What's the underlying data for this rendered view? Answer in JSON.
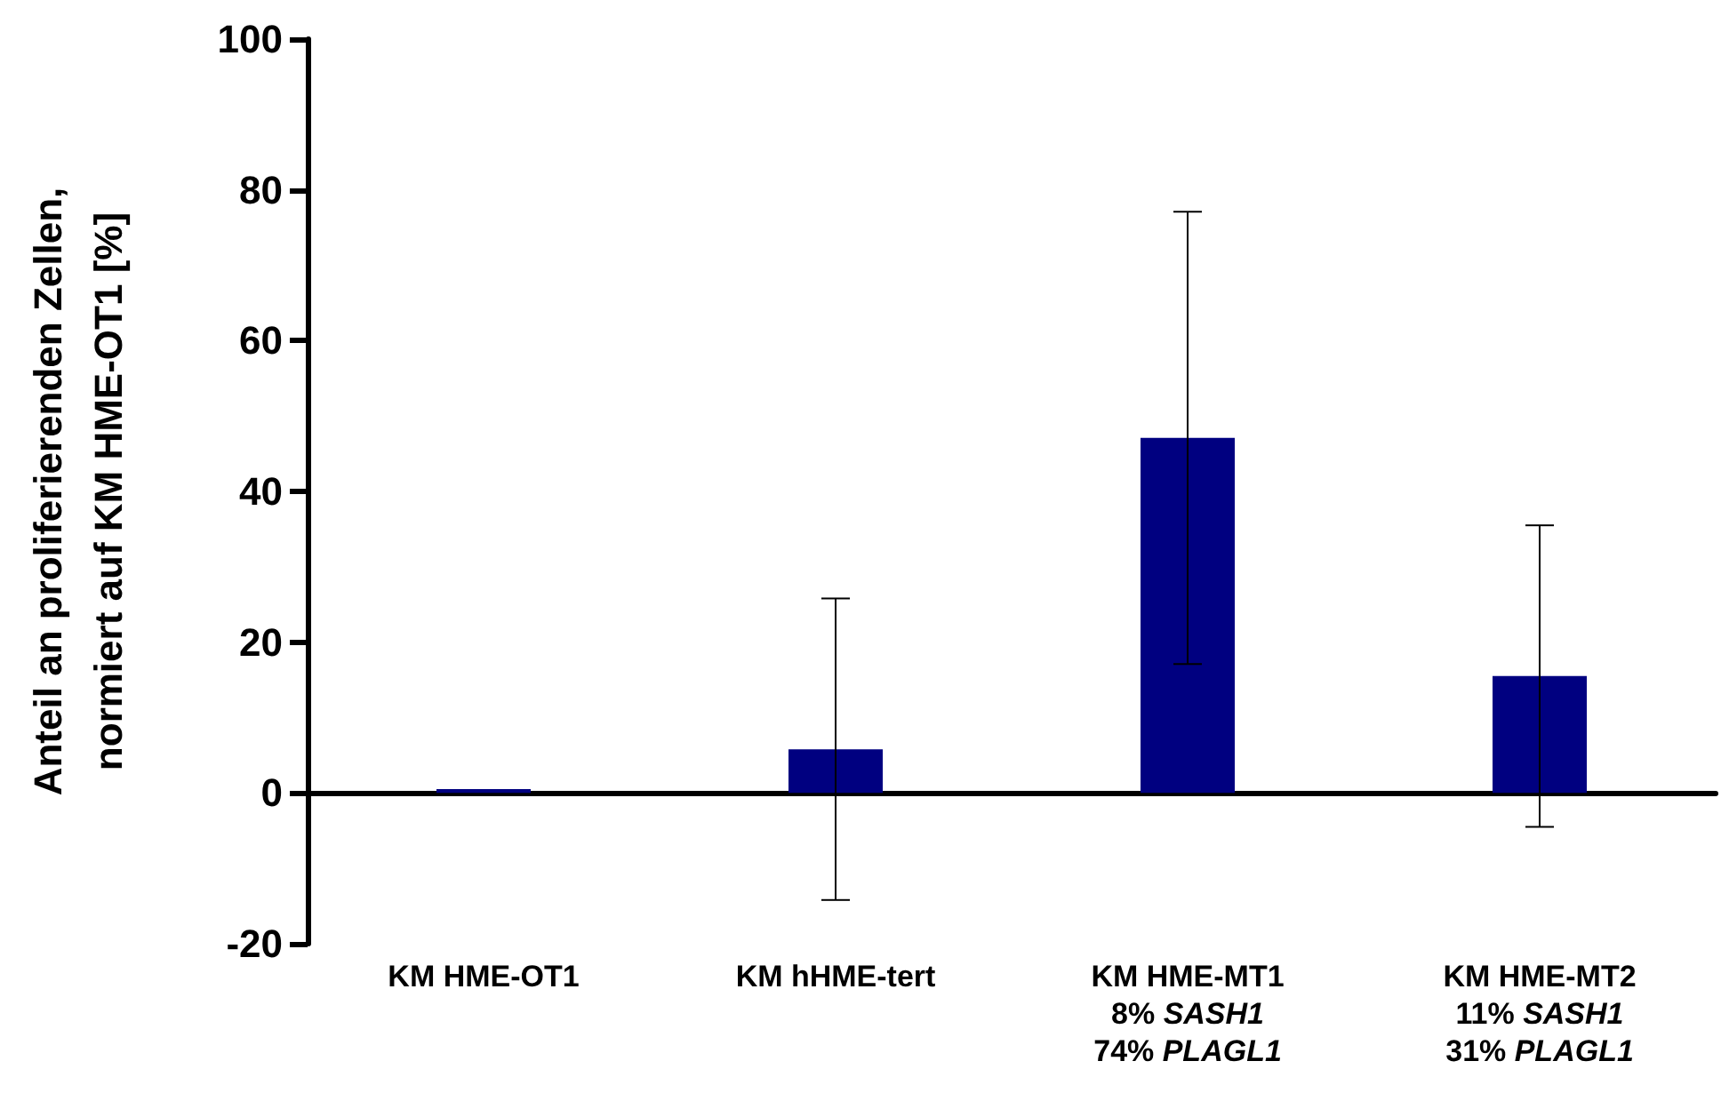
{
  "chart_data": {
    "type": "bar",
    "ylabel": "Anteil an proliferierenden Zellen,\nnormiert auf KM HME-OT1 [%]",
    "categories": [
      "KM HME-OT1",
      "KM hHME-tert",
      "KM HME-MT1\n8% SASH1\n74% PLAGL1",
      "KM HME-MT2\n11% SASH1\n31% PLAGL1"
    ],
    "values": [
      0.5,
      5.8,
      47.1,
      15.5
    ],
    "errors": [
      null,
      20,
      30,
      20
    ],
    "color": "#000080",
    "ylim": [
      -20,
      100
    ],
    "yticks": [
      -20,
      0,
      20,
      40,
      60,
      80,
      100
    ]
  }
}
